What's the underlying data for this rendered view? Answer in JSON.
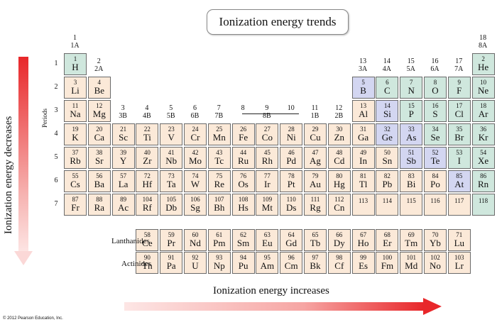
{
  "title": "Ionization energy trends",
  "vertical_trend": "Ionization energy decreases",
  "horizontal_trend": "Ionization energy increases",
  "periods_label": "Periods",
  "copyright": "© 2012 Pearson Education, Inc.",
  "series_labels": {
    "lanthanides": "Lanthanides",
    "actinides": "Actinides"
  },
  "group_labels": [
    {
      "col": 1,
      "num": "1",
      "sub": "1A"
    },
    {
      "col": 2,
      "num": "2",
      "sub": "2A"
    },
    {
      "col": 3,
      "num": "3",
      "sub": "3B"
    },
    {
      "col": 4,
      "num": "4",
      "sub": "4B"
    },
    {
      "col": 5,
      "num": "5",
      "sub": "5B"
    },
    {
      "col": 6,
      "num": "6",
      "sub": "6B"
    },
    {
      "col": 7,
      "num": "7",
      "sub": "7B"
    },
    {
      "col": 8,
      "num": "8",
      "sub": ""
    },
    {
      "col": 9,
      "num": "9",
      "sub": "8B"
    },
    {
      "col": 10,
      "num": "10",
      "sub": ""
    },
    {
      "col": 11,
      "num": "11",
      "sub": "1B"
    },
    {
      "col": 12,
      "num": "12",
      "sub": "2B"
    },
    {
      "col": 13,
      "num": "13",
      "sub": "3A"
    },
    {
      "col": 14,
      "num": "14",
      "sub": "4A"
    },
    {
      "col": 15,
      "num": "15",
      "sub": "5A"
    },
    {
      "col": 16,
      "num": "16",
      "sub": "6A"
    },
    {
      "col": 17,
      "num": "17",
      "sub": "7A"
    },
    {
      "col": 18,
      "num": "18",
      "sub": "8A"
    }
  ],
  "period_numbers": [
    "1",
    "2",
    "3",
    "4",
    "5",
    "6",
    "7"
  ],
  "elements": [
    {
      "n": "1",
      "s": "H",
      "r": 1,
      "c": 1,
      "k": "h"
    },
    {
      "n": "2",
      "s": "He",
      "r": 1,
      "c": 18,
      "k": "ng"
    },
    {
      "n": "3",
      "s": "Li",
      "r": 2,
      "c": 1
    },
    {
      "n": "4",
      "s": "Be",
      "r": 2,
      "c": 2
    },
    {
      "n": "5",
      "s": "B",
      "r": 2,
      "c": 13,
      "k": "md"
    },
    {
      "n": "6",
      "s": "C",
      "r": 2,
      "c": 14,
      "k": "nm"
    },
    {
      "n": "7",
      "s": "N",
      "r": 2,
      "c": 15,
      "k": "nm"
    },
    {
      "n": "8",
      "s": "O",
      "r": 2,
      "c": 16,
      "k": "nm"
    },
    {
      "n": "9",
      "s": "F",
      "r": 2,
      "c": 17,
      "k": "nm"
    },
    {
      "n": "10",
      "s": "Ne",
      "r": 2,
      "c": 18,
      "k": "ng"
    },
    {
      "n": "11",
      "s": "Na",
      "r": 3,
      "c": 1
    },
    {
      "n": "12",
      "s": "Mg",
      "r": 3,
      "c": 2
    },
    {
      "n": "13",
      "s": "Al",
      "r": 3,
      "c": 13
    },
    {
      "n": "14",
      "s": "Si",
      "r": 3,
      "c": 14,
      "k": "md"
    },
    {
      "n": "15",
      "s": "P",
      "r": 3,
      "c": 15,
      "k": "nm"
    },
    {
      "n": "16",
      "s": "S",
      "r": 3,
      "c": 16,
      "k": "nm"
    },
    {
      "n": "17",
      "s": "Cl",
      "r": 3,
      "c": 17,
      "k": "nm"
    },
    {
      "n": "18",
      "s": "Ar",
      "r": 3,
      "c": 18,
      "k": "ng"
    },
    {
      "n": "19",
      "s": "K",
      "r": 4,
      "c": 1
    },
    {
      "n": "20",
      "s": "Ca",
      "r": 4,
      "c": 2
    },
    {
      "n": "21",
      "s": "Sc",
      "r": 4,
      "c": 3
    },
    {
      "n": "22",
      "s": "Ti",
      "r": 4,
      "c": 4
    },
    {
      "n": "23",
      "s": "V",
      "r": 4,
      "c": 5
    },
    {
      "n": "24",
      "s": "Cr",
      "r": 4,
      "c": 6
    },
    {
      "n": "25",
      "s": "Mn",
      "r": 4,
      "c": 7
    },
    {
      "n": "26",
      "s": "Fe",
      "r": 4,
      "c": 8
    },
    {
      "n": "27",
      "s": "Co",
      "r": 4,
      "c": 9
    },
    {
      "n": "28",
      "s": "Ni",
      "r": 4,
      "c": 10
    },
    {
      "n": "29",
      "s": "Cu",
      "r": 4,
      "c": 11
    },
    {
      "n": "30",
      "s": "Zn",
      "r": 4,
      "c": 12
    },
    {
      "n": "31",
      "s": "Ga",
      "r": 4,
      "c": 13
    },
    {
      "n": "32",
      "s": "Ge",
      "r": 4,
      "c": 14,
      "k": "md"
    },
    {
      "n": "33",
      "s": "As",
      "r": 4,
      "c": 15,
      "k": "md"
    },
    {
      "n": "34",
      "s": "Se",
      "r": 4,
      "c": 16,
      "k": "nm"
    },
    {
      "n": "35",
      "s": "Br",
      "r": 4,
      "c": 17,
      "k": "nm"
    },
    {
      "n": "36",
      "s": "Kr",
      "r": 4,
      "c": 18,
      "k": "ng"
    },
    {
      "n": "37",
      "s": "Rb",
      "r": 5,
      "c": 1
    },
    {
      "n": "38",
      "s": "Sr",
      "r": 5,
      "c": 2
    },
    {
      "n": "39",
      "s": "Y",
      "r": 5,
      "c": 3
    },
    {
      "n": "40",
      "s": "Zr",
      "r": 5,
      "c": 4
    },
    {
      "n": "41",
      "s": "Nb",
      "r": 5,
      "c": 5
    },
    {
      "n": "42",
      "s": "Mo",
      "r": 5,
      "c": 6
    },
    {
      "n": "43",
      "s": "Tc",
      "r": 5,
      "c": 7
    },
    {
      "n": "44",
      "s": "Ru",
      "r": 5,
      "c": 8
    },
    {
      "n": "45",
      "s": "Rh",
      "r": 5,
      "c": 9
    },
    {
      "n": "46",
      "s": "Pd",
      "r": 5,
      "c": 10
    },
    {
      "n": "47",
      "s": "Ag",
      "r": 5,
      "c": 11
    },
    {
      "n": "48",
      "s": "Cd",
      "r": 5,
      "c": 12
    },
    {
      "n": "49",
      "s": "In",
      "r": 5,
      "c": 13
    },
    {
      "n": "50",
      "s": "Sn",
      "r": 5,
      "c": 14
    },
    {
      "n": "51",
      "s": "Sb",
      "r": 5,
      "c": 15,
      "k": "md"
    },
    {
      "n": "52",
      "s": "Te",
      "r": 5,
      "c": 16,
      "k": "md"
    },
    {
      "n": "53",
      "s": "I",
      "r": 5,
      "c": 17,
      "k": "nm"
    },
    {
      "n": "54",
      "s": "Xe",
      "r": 5,
      "c": 18,
      "k": "ng"
    },
    {
      "n": "55",
      "s": "Cs",
      "r": 6,
      "c": 1
    },
    {
      "n": "56",
      "s": "Ba",
      "r": 6,
      "c": 2
    },
    {
      "n": "57",
      "s": "La",
      "r": 6,
      "c": 3
    },
    {
      "n": "72",
      "s": "Hf",
      "r": 6,
      "c": 4
    },
    {
      "n": "73",
      "s": "Ta",
      "r": 6,
      "c": 5
    },
    {
      "n": "74",
      "s": "W",
      "r": 6,
      "c": 6
    },
    {
      "n": "75",
      "s": "Re",
      "r": 6,
      "c": 7
    },
    {
      "n": "76",
      "s": "Os",
      "r": 6,
      "c": 8
    },
    {
      "n": "77",
      "s": "Ir",
      "r": 6,
      "c": 9
    },
    {
      "n": "78",
      "s": "Pt",
      "r": 6,
      "c": 10
    },
    {
      "n": "79",
      "s": "Au",
      "r": 6,
      "c": 11
    },
    {
      "n": "80",
      "s": "Hg",
      "r": 6,
      "c": 12
    },
    {
      "n": "81",
      "s": "Tl",
      "r": 6,
      "c": 13
    },
    {
      "n": "82",
      "s": "Pb",
      "r": 6,
      "c": 14
    },
    {
      "n": "83",
      "s": "Bi",
      "r": 6,
      "c": 15
    },
    {
      "n": "84",
      "s": "Po",
      "r": 6,
      "c": 16
    },
    {
      "n": "85",
      "s": "At",
      "r": 6,
      "c": 17,
      "k": "md"
    },
    {
      "n": "86",
      "s": "Rn",
      "r": 6,
      "c": 18,
      "k": "ng"
    },
    {
      "n": "87",
      "s": "Fr",
      "r": 7,
      "c": 1
    },
    {
      "n": "88",
      "s": "Ra",
      "r": 7,
      "c": 2
    },
    {
      "n": "89",
      "s": "Ac",
      "r": 7,
      "c": 3
    },
    {
      "n": "104",
      "s": "Rf",
      "r": 7,
      "c": 4
    },
    {
      "n": "105",
      "s": "Db",
      "r": 7,
      "c": 5
    },
    {
      "n": "106",
      "s": "Sg",
      "r": 7,
      "c": 6
    },
    {
      "n": "107",
      "s": "Bh",
      "r": 7,
      "c": 7
    },
    {
      "n": "108",
      "s": "Hs",
      "r": 7,
      "c": 8
    },
    {
      "n": "109",
      "s": "Mt",
      "r": 7,
      "c": 9
    },
    {
      "n": "110",
      "s": "Ds",
      "r": 7,
      "c": 10
    },
    {
      "n": "111",
      "s": "Rg",
      "r": 7,
      "c": 11
    },
    {
      "n": "112",
      "s": "Cn",
      "r": 7,
      "c": 12
    },
    {
      "n": "113",
      "s": "",
      "r": 7,
      "c": 13
    },
    {
      "n": "114",
      "s": "",
      "r": 7,
      "c": 14
    },
    {
      "n": "115",
      "s": "",
      "r": 7,
      "c": 15
    },
    {
      "n": "116",
      "s": "",
      "r": 7,
      "c": 16
    },
    {
      "n": "117",
      "s": "",
      "r": 7,
      "c": 17
    },
    {
      "n": "118",
      "s": "",
      "r": 7,
      "c": 18,
      "k": "ng"
    }
  ],
  "lanthanides": [
    {
      "n": "58",
      "s": "Ce"
    },
    {
      "n": "59",
      "s": "Pr"
    },
    {
      "n": "60",
      "s": "Nd"
    },
    {
      "n": "61",
      "s": "Pm"
    },
    {
      "n": "62",
      "s": "Sm"
    },
    {
      "n": "63",
      "s": "Eu"
    },
    {
      "n": "64",
      "s": "Gd"
    },
    {
      "n": "65",
      "s": "Tb"
    },
    {
      "n": "66",
      "s": "Dy"
    },
    {
      "n": "67",
      "s": "Ho"
    },
    {
      "n": "68",
      "s": "Er"
    },
    {
      "n": "69",
      "s": "Tm"
    },
    {
      "n": "70",
      "s": "Yb"
    },
    {
      "n": "71",
      "s": "Lu"
    }
  ],
  "actinides": [
    {
      "n": "90",
      "s": "Th"
    },
    {
      "n": "91",
      "s": "Pa"
    },
    {
      "n": "92",
      "s": "U"
    },
    {
      "n": "93",
      "s": "Np"
    },
    {
      "n": "94",
      "s": "Pu"
    },
    {
      "n": "95",
      "s": "Am"
    },
    {
      "n": "96",
      "s": "Cm"
    },
    {
      "n": "97",
      "s": "Bk"
    },
    {
      "n": "98",
      "s": "Cf"
    },
    {
      "n": "99",
      "s": "Es"
    },
    {
      "n": "100",
      "s": "Fm"
    },
    {
      "n": "101",
      "s": "Md"
    },
    {
      "n": "102",
      "s": "No"
    },
    {
      "n": "103",
      "s": "Lr"
    }
  ],
  "colors": {
    "metal": "#fbe9d8",
    "nonmetal": "#cfe7dd",
    "metalloid": "#d3d6f1",
    "arrow": "#e8272a"
  }
}
